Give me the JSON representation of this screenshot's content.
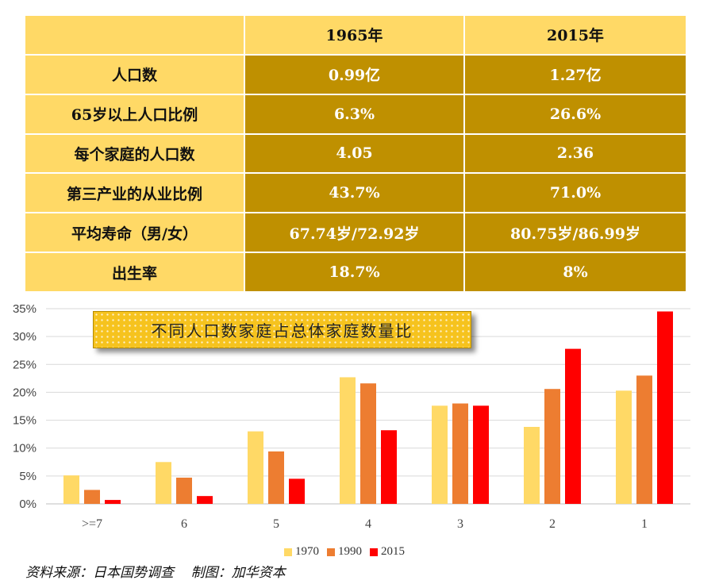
{
  "table": {
    "header": [
      "",
      "1965年",
      "2015年"
    ],
    "rows": [
      {
        "label": "人口数",
        "v1965": "0.99亿",
        "v2015": "1.27亿"
      },
      {
        "label": "65岁以上人口比例",
        "v1965": "6.3%",
        "v2015": "26.6%"
      },
      {
        "label": "每个家庭的人口数",
        "v1965": "4.05",
        "v2015": "2.36"
      },
      {
        "label": "第三产业的从业比例",
        "v1965": "43.7%",
        "v2015": "71.0%"
      },
      {
        "label": "平均寿命（男/女）",
        "v1965": "67.74岁/72.92岁",
        "v2015": "80.75岁/86.99岁"
      },
      {
        "label": "出生率",
        "v1965": "18.7%",
        "v2015": "8%"
      }
    ]
  },
  "chart_data": {
    "type": "bar",
    "title": "不同人口数家庭占总体家庭数量比",
    "categories": [
      ">=7",
      "6",
      "5",
      "4",
      "3",
      "2",
      "1"
    ],
    "series": [
      {
        "name": "1970",
        "color": "#FFD966",
        "values": [
          5.1,
          7.5,
          13.0,
          22.7,
          17.6,
          13.8,
          20.3
        ]
      },
      {
        "name": "1990",
        "color": "#ED7D31",
        "values": [
          2.5,
          4.7,
          9.4,
          21.6,
          18.0,
          20.6,
          23.0
        ]
      },
      {
        "name": "2015",
        "color": "#FF0000",
        "values": [
          0.7,
          1.4,
          4.5,
          13.2,
          17.6,
          27.8,
          34.5
        ]
      }
    ],
    "yticks": [
      "0%",
      "5%",
      "10%",
      "15%",
      "20%",
      "25%",
      "30%",
      "35%"
    ],
    "ylim": [
      0,
      35
    ],
    "grid": true,
    "legend": "bottom"
  },
  "source": "资料来源：日本国势调查    制图：加华资本"
}
